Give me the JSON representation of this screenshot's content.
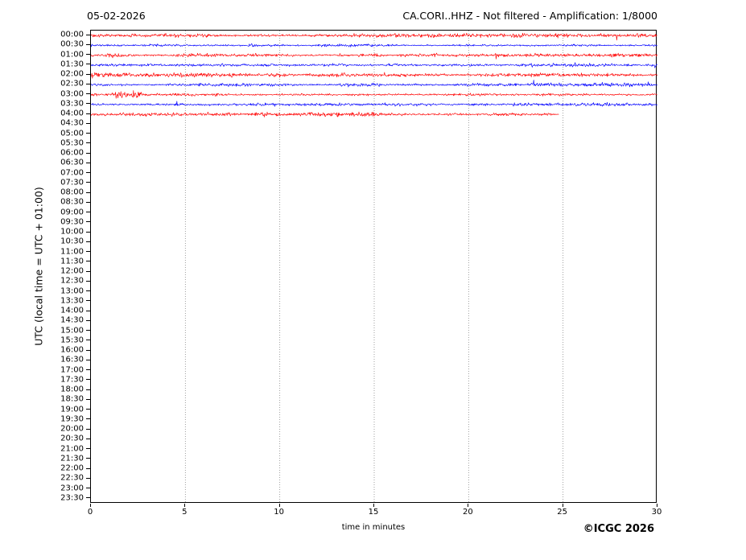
{
  "header": {
    "date": "05-02-2026",
    "title": "CA.CORI..HHZ - Not filtered - Amplification: 1/8000"
  },
  "footer": {
    "copyright": "©ICGC 2026"
  },
  "colors": {
    "trace_red": "#ff0000",
    "trace_blue": "#0000ff",
    "grid": "#888888",
    "axis": "#000000",
    "background": "#ffffff"
  },
  "chart_data": {
    "type": "line",
    "subtype": "helicorder-seismogram",
    "title": "CA.CORI..HHZ - Not filtered - Amplification: 1/8000",
    "date_label": "05-02-2026",
    "xlabel": "time in minutes",
    "ylabel": "UTC (local time = UTC + 01:00)",
    "xlim": [
      0,
      30
    ],
    "x_ticks": [
      0,
      5,
      10,
      15,
      20,
      25,
      30
    ],
    "grid": "vertical dotted lines at 5-minute intervals, full plot height",
    "legend": "none",
    "y_tick_labels": [
      "00:00",
      "00:30",
      "01:00",
      "01:30",
      "02:00",
      "02:30",
      "03:00",
      "03:30",
      "04:00",
      "04:30",
      "05:00",
      "05:30",
      "06:00",
      "06:30",
      "07:00",
      "07:30",
      "08:00",
      "08:30",
      "09:00",
      "09:30",
      "10:00",
      "10:30",
      "11:00",
      "11:30",
      "12:00",
      "12:30",
      "13:00",
      "13:30",
      "14:00",
      "14:30",
      "15:00",
      "15:30",
      "16:00",
      "16:30",
      "17:00",
      "17:30",
      "18:00",
      "18:30",
      "19:00",
      "19:30",
      "20:00",
      "20:30",
      "21:00",
      "21:30",
      "22:00",
      "22:30",
      "23:00",
      "23:30"
    ],
    "series": [
      {
        "name": "00:00",
        "row": 0,
        "color": "#ff0000",
        "start_minute": 0,
        "end_minute": 30,
        "character": "continuous background noise",
        "bursts": []
      },
      {
        "name": "00:30",
        "row": 1,
        "color": "#0000ff",
        "start_minute": 0,
        "end_minute": 30,
        "character": "continuous background noise",
        "bursts": [
          {
            "minute": 9.0,
            "width": 0.7,
            "gain": 1.5
          }
        ]
      },
      {
        "name": "01:00",
        "row": 2,
        "color": "#ff0000",
        "start_minute": 0,
        "end_minute": 30,
        "character": "continuous background noise",
        "bursts": [
          {
            "minute": 1.2,
            "width": 0.5,
            "gain": 1.5
          }
        ]
      },
      {
        "name": "01:30",
        "row": 3,
        "color": "#0000ff",
        "start_minute": 0,
        "end_minute": 30,
        "character": "continuous background noise",
        "bursts": []
      },
      {
        "name": "02:00",
        "row": 4,
        "color": "#ff0000",
        "start_minute": 0,
        "end_minute": 30,
        "character": "continuous background noise",
        "bursts": [
          {
            "minute": 0.3,
            "width": 0.4,
            "gain": 1.8
          }
        ]
      },
      {
        "name": "02:30",
        "row": 5,
        "color": "#0000ff",
        "start_minute": 0,
        "end_minute": 30,
        "character": "continuous background noise",
        "bursts": []
      },
      {
        "name": "03:00",
        "row": 6,
        "color": "#ff0000",
        "start_minute": 0,
        "end_minute": 30,
        "character": "continuous background noise",
        "bursts": [
          {
            "minute": 1.9,
            "width": 0.8,
            "gain": 2.1
          }
        ]
      },
      {
        "name": "03:30",
        "row": 7,
        "color": "#0000ff",
        "start_minute": 0,
        "end_minute": 30,
        "character": "continuous background noise",
        "bursts": [
          {
            "minute": 23.0,
            "width": 0.8,
            "gain": 1.5
          }
        ]
      },
      {
        "name": "04:00",
        "row": 8,
        "color": "#ff0000",
        "start_minute": 0,
        "end_minute": 24.8,
        "character": "continuous background noise, recording stops at ~24.8 min",
        "bursts": []
      }
    ],
    "empty_rows": "04:30 through 23:30 contain no trace data"
  }
}
